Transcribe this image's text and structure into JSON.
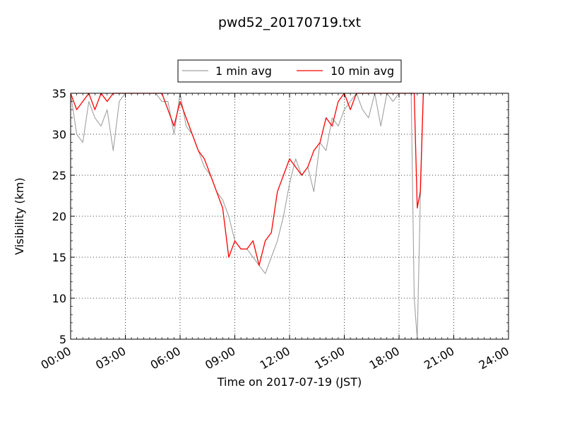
{
  "chart_data": {
    "type": "line",
    "title": "pwd52_20170719.txt",
    "xlabel": "Time on 2017-07-19 (JST)",
    "ylabel": "Visibility (km)",
    "xlim": [
      "00:00",
      "24:00"
    ],
    "ylim": [
      5,
      35
    ],
    "grid": true,
    "legend_position": "top-center",
    "x_ticks": [
      "00:00",
      "03:00",
      "06:00",
      "09:00",
      "12:00",
      "15:00",
      "18:00",
      "21:00",
      "24:00"
    ],
    "y_ticks": [
      "5",
      "10",
      "15",
      "20",
      "25",
      "30",
      "35"
    ],
    "colors": {
      "one_min": "#a0a0a0",
      "ten_min": "#ff0000"
    },
    "series": [
      {
        "name": "1 min avg",
        "x": [
          "00:00",
          "00:20",
          "00:40",
          "01:00",
          "01:20",
          "01:40",
          "02:00",
          "02:20",
          "02:40",
          "03:00",
          "03:20",
          "03:40",
          "04:00",
          "04:20",
          "04:40",
          "05:00",
          "05:20",
          "05:40",
          "06:00",
          "06:20",
          "06:40",
          "07:00",
          "07:20",
          "07:40",
          "08:00",
          "08:20",
          "08:40",
          "09:00",
          "09:20",
          "09:40",
          "10:00",
          "10:20",
          "10:40",
          "11:00",
          "11:20",
          "11:40",
          "12:00",
          "12:20",
          "12:40",
          "13:00",
          "13:20",
          "13:40",
          "14:00",
          "14:20",
          "14:40",
          "15:00",
          "15:20",
          "15:40",
          "16:00",
          "16:20",
          "16:40",
          "17:00",
          "17:20",
          "17:40",
          "18:00",
          "18:20",
          "18:40",
          "18:50",
          "19:00",
          "19:10",
          "19:20",
          "19:40",
          "20:00",
          "21:00",
          "22:00",
          "23:00",
          "24:00"
        ],
        "values": [
          35,
          30,
          29,
          34,
          32,
          31,
          33,
          28,
          34,
          35,
          35,
          35,
          35,
          35,
          35,
          34,
          34,
          30,
          35,
          31,
          30,
          28,
          26,
          25,
          23,
          22,
          20,
          17,
          16,
          16,
          15,
          14,
          13,
          15,
          17,
          20,
          24,
          27,
          25,
          26,
          23,
          29,
          28,
          32,
          31,
          33,
          34,
          35,
          33,
          32,
          35,
          31,
          35,
          34,
          35,
          35,
          35,
          10,
          5,
          22,
          35,
          35,
          35,
          35,
          35,
          35,
          35
        ]
      },
      {
        "name": "10 min avg",
        "x": [
          "00:00",
          "00:20",
          "00:40",
          "01:00",
          "01:20",
          "01:40",
          "02:00",
          "02:20",
          "02:40",
          "03:00",
          "05:00",
          "05:20",
          "05:40",
          "06:00",
          "06:20",
          "06:40",
          "07:00",
          "07:20",
          "07:40",
          "08:00",
          "08:20",
          "08:40",
          "09:00",
          "09:20",
          "09:40",
          "10:00",
          "10:20",
          "10:40",
          "11:00",
          "11:20",
          "11:40",
          "12:00",
          "12:20",
          "12:40",
          "13:00",
          "13:20",
          "13:40",
          "14:00",
          "14:20",
          "14:40",
          "15:00",
          "15:20",
          "15:40",
          "16:00",
          "18:00",
          "18:50",
          "19:00",
          "19:10",
          "19:20"
        ],
        "values": [
          35,
          33,
          34,
          35,
          33,
          35,
          34,
          35,
          35,
          35,
          35,
          33,
          31,
          34,
          32,
          30,
          28,
          27,
          25,
          23,
          21,
          15,
          17,
          16,
          16,
          17,
          14,
          17,
          18,
          23,
          25,
          27,
          26,
          25,
          26,
          28,
          29,
          32,
          31,
          34,
          35,
          33,
          35,
          35,
          35,
          35,
          21,
          23,
          35
        ]
      }
    ]
  }
}
